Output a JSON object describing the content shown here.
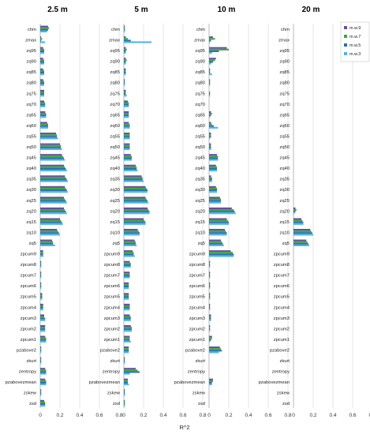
{
  "chart_data": {
    "type": "bar",
    "orientation": "horizontal",
    "xlabel": "R^2",
    "xlim": [
      0,
      0.8
    ],
    "xticks": [
      "0",
      "0.2",
      "0.4",
      "0.6",
      "0.8"
    ],
    "grid": true,
    "legend": {
      "position": "top-right",
      "entries": [
        "m.w.9",
        "m.w.7",
        "m.w.5",
        "m.w.3"
      ]
    },
    "colors": {
      "m.w.9": "#6b4d9e",
      "m.w.7": "#3aa83a",
      "m.w.5": "#2c6fb5",
      "m.w.3": "#4ab6e6"
    },
    "categories": [
      "chm",
      "zmax",
      "zq95",
      "zq90",
      "zq85",
      "zq80",
      "zq75",
      "zq70",
      "zq65",
      "zq60",
      "zq55",
      "zq50",
      "zq45",
      "zq40",
      "zq35",
      "zq30",
      "zq25",
      "zq20",
      "zq15",
      "zq10",
      "zq5",
      "zpcum9",
      "zpcum8",
      "zpcum7",
      "zpcum6",
      "zpcum5",
      "zpcum4",
      "zpcum3",
      "zpcum2",
      "zpcum1",
      "pzabove2",
      "zkurt",
      "zentropy",
      "pzabovezmean",
      "zskew",
      "zsd"
    ],
    "panels": [
      {
        "title": "2.5 m",
        "series": [
          {
            "name": "m.w.9",
            "values": [
              0.08,
              0.01,
              0.03,
              0.03,
              0.03,
              0.03,
              0.04,
              0.04,
              0.05,
              0.07,
              0.16,
              0.2,
              0.22,
              0.24,
              0.25,
              0.25,
              0.24,
              0.24,
              0.2,
              0.17,
              0.12,
              0.03,
              0.01,
              0.01,
              0.01,
              0.02,
              0.03,
              0.04,
              0.05,
              0.05,
              0.01,
              0.01,
              0.05,
              0.05,
              0.01,
              0.04
            ]
          },
          {
            "name": "m.w.7",
            "values": [
              0.09,
              0.02,
              0.04,
              0.04,
              0.04,
              0.04,
              0.04,
              0.05,
              0.06,
              0.08,
              0.17,
              0.21,
              0.23,
              0.25,
              0.26,
              0.26,
              0.25,
              0.25,
              0.21,
              0.18,
              0.13,
              0.03,
              0.01,
              0.01,
              0.01,
              0.02,
              0.03,
              0.04,
              0.05,
              0.06,
              0.01,
              0.01,
              0.06,
              0.06,
              0.01,
              0.05
            ]
          },
          {
            "name": "m.w.5",
            "values": [
              0.08,
              0.01,
              0.04,
              0.04,
              0.04,
              0.04,
              0.04,
              0.05,
              0.06,
              0.08,
              0.17,
              0.21,
              0.24,
              0.26,
              0.27,
              0.27,
              0.26,
              0.26,
              0.22,
              0.19,
              0.13,
              0.03,
              0.01,
              0.01,
              0.01,
              0.02,
              0.03,
              0.05,
              0.05,
              0.06,
              0.01,
              0.01,
              0.06,
              0.06,
              0.01,
              0.05
            ]
          },
          {
            "name": "m.w.3",
            "values": [
              0.07,
              0.05,
              0.04,
              0.04,
              0.04,
              0.04,
              0.04,
              0.05,
              0.06,
              0.08,
              0.18,
              0.22,
              0.25,
              0.27,
              0.28,
              0.28,
              0.27,
              0.27,
              0.23,
              0.2,
              0.15,
              0.03,
              0.01,
              0.01,
              0.01,
              0.02,
              0.03,
              0.05,
              0.05,
              0.06,
              0.01,
              0.01,
              0.06,
              0.06,
              0.01,
              0.05
            ]
          }
        ]
      },
      {
        "title": "5 m",
        "series": [
          {
            "name": "m.w.9",
            "values": [
              0.01,
              0.02,
              0.02,
              0.02,
              0.02,
              0.01,
              0.02,
              0.04,
              0.05,
              0.05,
              0.06,
              0.06,
              0.07,
              0.12,
              0.18,
              0.22,
              0.22,
              0.24,
              0.2,
              0.14,
              0.11,
              0.09,
              0.06,
              0.06,
              0.05,
              0.05,
              0.06,
              0.06,
              0.07,
              0.06,
              0.05,
              0.01,
              0.12,
              0.04,
              0.01,
              0.01
            ]
          },
          {
            "name": "m.w.7",
            "values": [
              0.01,
              0.04,
              0.03,
              0.03,
              0.02,
              0.01,
              0.02,
              0.05,
              0.05,
              0.06,
              0.06,
              0.06,
              0.08,
              0.13,
              0.19,
              0.23,
              0.23,
              0.25,
              0.21,
              0.15,
              0.12,
              0.1,
              0.07,
              0.06,
              0.05,
              0.05,
              0.06,
              0.07,
              0.08,
              0.06,
              0.05,
              0.01,
              0.14,
              0.04,
              0.01,
              0.01
            ]
          },
          {
            "name": "m.w.5",
            "values": [
              0.01,
              0.07,
              0.02,
              0.02,
              0.02,
              0.01,
              0.02,
              0.05,
              0.05,
              0.06,
              0.06,
              0.06,
              0.08,
              0.13,
              0.19,
              0.24,
              0.24,
              0.26,
              0.22,
              0.16,
              0.12,
              0.1,
              0.07,
              0.06,
              0.05,
              0.05,
              0.06,
              0.07,
              0.08,
              0.06,
              0.05,
              0.01,
              0.16,
              0.04,
              0.01,
              0.01
            ]
          },
          {
            "name": "m.w.3",
            "values": [
              0.01,
              0.28,
              0.02,
              0.02,
              0.02,
              0.01,
              0.03,
              0.05,
              0.05,
              0.06,
              0.06,
              0.06,
              0.08,
              0.14,
              0.2,
              0.24,
              0.25,
              0.26,
              0.22,
              0.16,
              0.13,
              0.11,
              0.07,
              0.06,
              0.05,
              0.05,
              0.06,
              0.07,
              0.08,
              0.07,
              0.05,
              0.01,
              0.06,
              0.05,
              0.01,
              0.01
            ]
          }
        ]
      },
      {
        "title": "10 m",
        "series": [
          {
            "name": "m.w.9",
            "values": [
              0.0,
              0.04,
              0.18,
              0.07,
              0.01,
              0.01,
              0.0,
              0.0,
              0.02,
              0.02,
              0.02,
              0.02,
              0.08,
              0.07,
              0.02,
              0.07,
              0.11,
              0.23,
              0.18,
              0.16,
              0.12,
              0.22,
              0.01,
              0.01,
              0.01,
              0.01,
              0.01,
              0.02,
              0.01,
              0.03,
              0.11,
              0.0,
              0.0,
              0.04,
              0.0,
              0.0
            ]
          },
          {
            "name": "m.w.7",
            "values": [
              0.0,
              0.06,
              0.2,
              0.06,
              0.01,
              0.01,
              0.01,
              0.0,
              0.03,
              0.03,
              0.02,
              0.02,
              0.09,
              0.08,
              0.03,
              0.08,
              0.12,
              0.25,
              0.19,
              0.17,
              0.13,
              0.24,
              0.01,
              0.01,
              0.01,
              0.01,
              0.01,
              0.02,
              0.01,
              0.03,
              0.12,
              0.0,
              0.0,
              0.04,
              0.0,
              0.0
            ]
          },
          {
            "name": "m.w.5",
            "values": [
              0.0,
              0.02,
              0.1,
              0.04,
              0.01,
              0.01,
              0.01,
              0.0,
              0.02,
              0.05,
              0.02,
              0.02,
              0.09,
              0.08,
              0.03,
              0.08,
              0.12,
              0.26,
              0.2,
              0.18,
              0.14,
              0.25,
              0.01,
              0.01,
              0.01,
              0.01,
              0.01,
              0.02,
              0.01,
              0.02,
              0.13,
              0.0,
              0.0,
              0.03,
              0.0,
              0.0
            ]
          },
          {
            "name": "m.w.3",
            "values": [
              0.0,
              0.01,
              0.03,
              0.02,
              0.03,
              0.01,
              0.01,
              0.0,
              0.01,
              0.09,
              0.01,
              0.02,
              0.09,
              0.08,
              0.03,
              0.08,
              0.12,
              0.27,
              0.2,
              0.18,
              0.15,
              0.25,
              0.01,
              0.01,
              0.01,
              0.01,
              0.01,
              0.02,
              0.01,
              0.01,
              0.1,
              0.0,
              0.0,
              0.03,
              0.0,
              0.0
            ]
          }
        ]
      },
      {
        "title": "20 m",
        "series": [
          {
            "name": "m.w.9",
            "values": [
              0,
              0,
              0,
              0,
              0,
              0,
              0,
              0,
              0,
              0,
              0,
              0,
              0,
              0,
              0,
              0,
              0,
              0.02,
              0.08,
              0.17,
              0.13,
              0,
              0,
              0,
              0,
              0,
              0,
              0,
              0,
              0,
              0,
              0,
              0,
              0,
              0,
              0
            ]
          },
          {
            "name": "m.w.7",
            "values": [
              0,
              0,
              0,
              0,
              0,
              0,
              0,
              0,
              0,
              0,
              0,
              0,
              0,
              0,
              0,
              0,
              0,
              0.03,
              0.09,
              0.18,
              0.14,
              0,
              0,
              0,
              0,
              0,
              0,
              0,
              0,
              0,
              0,
              0,
              0,
              0,
              0,
              0
            ]
          },
          {
            "name": "m.w.5",
            "values": [
              0,
              0,
              0,
              0,
              0,
              0,
              0,
              0,
              0,
              0,
              0,
              0,
              0,
              0,
              0,
              0,
              0,
              0.02,
              0.1,
              0.19,
              0.15,
              0,
              0,
              0,
              0,
              0,
              0,
              0,
              0,
              0,
              0,
              0,
              0,
              0,
              0,
              0
            ]
          },
          {
            "name": "m.w.3",
            "values": [
              0,
              0,
              0,
              0,
              0,
              0,
              0,
              0,
              0,
              0,
              0,
              0,
              0,
              0,
              0,
              0,
              0,
              0.01,
              0.1,
              0.2,
              0.16,
              0,
              0,
              0,
              0,
              0,
              0,
              0,
              0,
              0,
              0,
              0,
              0,
              0,
              0,
              0
            ]
          }
        ]
      }
    ]
  }
}
